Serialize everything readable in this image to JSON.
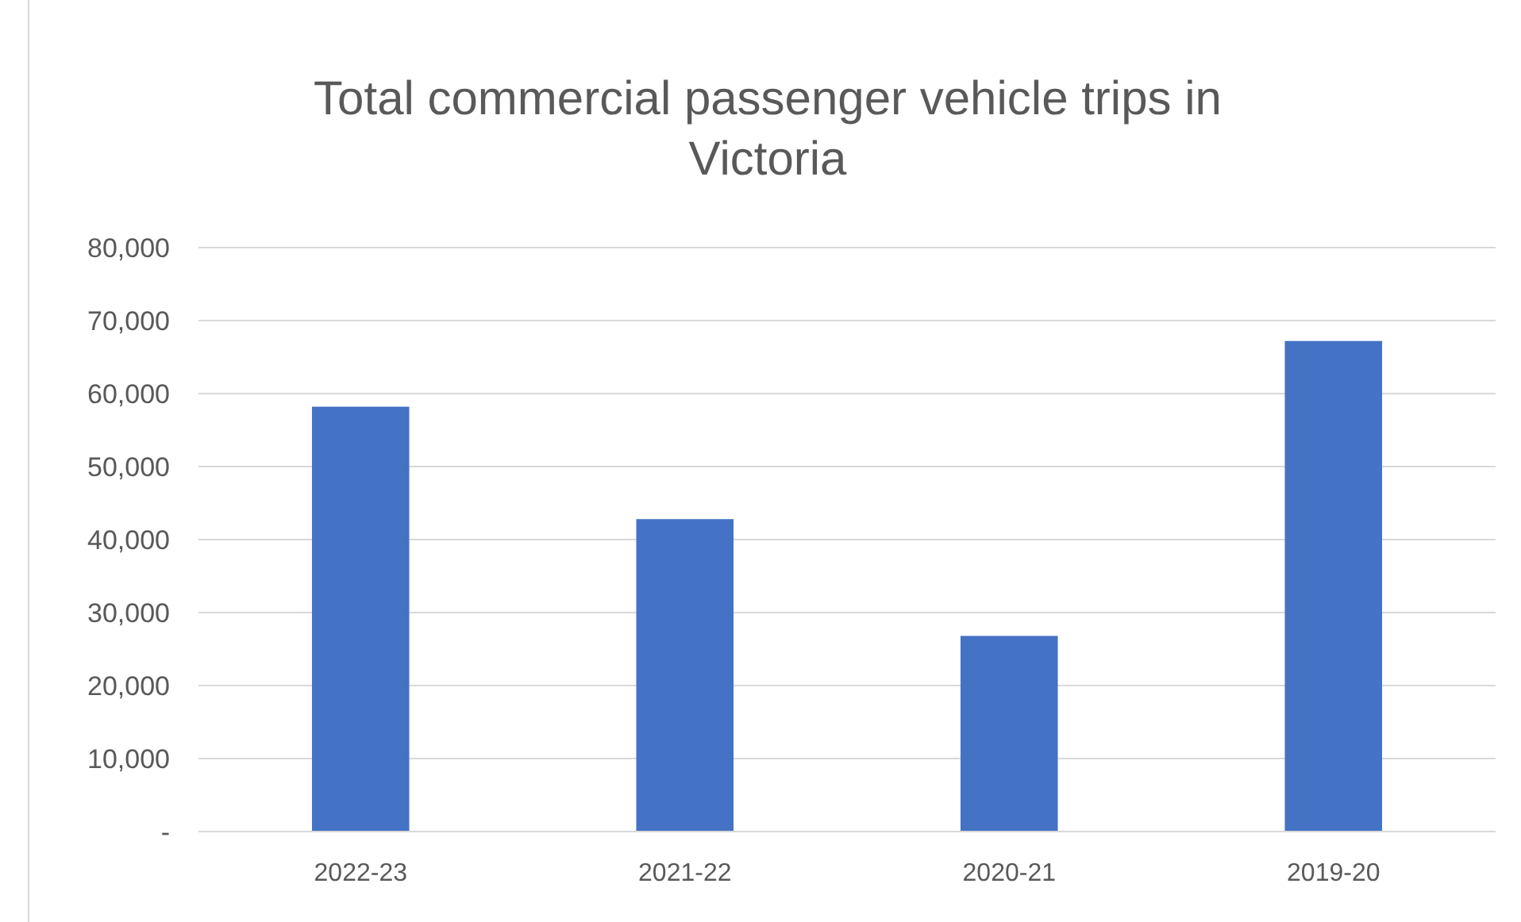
{
  "chart_data": {
    "type": "bar",
    "title": "Total commercial passenger vehicle trips in Victoria",
    "categories": [
      "2022-23",
      "2021-22",
      "2020-21",
      "2019-20"
    ],
    "values": [
      58200,
      42800,
      26800,
      67200
    ],
    "color": "#4472c4",
    "ylim": [
      0,
      80000
    ],
    "yticks": [
      {
        "value": 0,
        "label": "-"
      },
      {
        "value": 10000,
        "label": "10,000"
      },
      {
        "value": 20000,
        "label": "20,000"
      },
      {
        "value": 30000,
        "label": "30,000"
      },
      {
        "value": 40000,
        "label": "40,000"
      },
      {
        "value": 50000,
        "label": "50,000"
      },
      {
        "value": 60000,
        "label": "60,000"
      },
      {
        "value": 70000,
        "label": "70,000"
      },
      {
        "value": 80000,
        "label": "80,000"
      }
    ],
    "grid": "y"
  }
}
